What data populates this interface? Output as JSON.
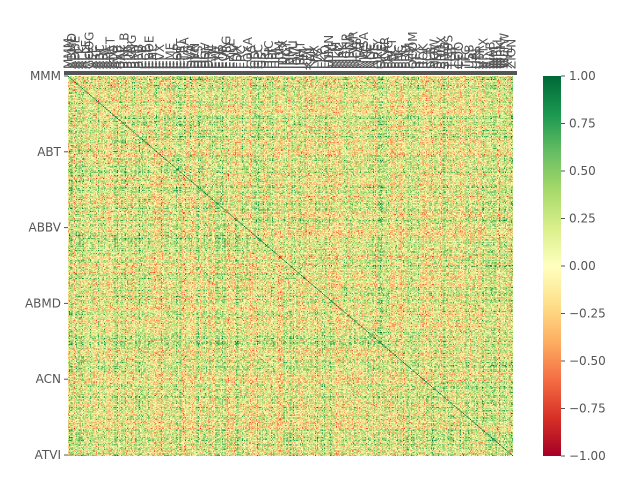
{
  "chart_data": {
    "type": "heatmap",
    "title": "",
    "xlabel": "",
    "ylabel": "",
    "colormap": "RdYlGn",
    "value_range": [
      -1.0,
      1.0
    ],
    "y_tick_labels": [
      "MMM",
      "ABT",
      "ABBV",
      "ABMD",
      "ACN",
      "ATVI"
    ],
    "x_tick_labels": [
      "MMM",
      "AOS",
      "ABT",
      "ABBV",
      "ABMD",
      "ACN",
      "ATVI",
      "ADM",
      "ADBE",
      "AAP",
      "AMD",
      "AES",
      "AFL",
      "A",
      "APD",
      "AKAM",
      "ALK",
      "ALB",
      "ARE",
      "ALGN",
      "ALLE",
      "LNT",
      "ALL",
      "GOOGL",
      "GOOG",
      "MO",
      "AMZN",
      "AMCR",
      "AEE",
      "AAL",
      "AEP",
      "AXP",
      "AIG",
      "AMT",
      "AWK",
      "AMP",
      "ABC",
      "AME",
      "AMGN",
      "APH",
      "ADI",
      "ANSS",
      "ANTM",
      "AON",
      "APA",
      "AAPL",
      "AMAT",
      "APTV",
      "ANET",
      "AJG",
      "AIZ",
      "T",
      "ATO",
      "ADSK",
      "ADP",
      "AZO",
      "AVB",
      "AVY",
      "BKR",
      "BLL",
      "BAC",
      "BBWI",
      "BAX",
      "BDX",
      "BRK.B",
      "BBY",
      "BIO",
      "TECH",
      "BIIB",
      "BLK",
      "BK",
      "BA",
      "BKNG",
      "BWA",
      "BXP",
      "BSX",
      "BMY",
      "AVGO",
      "BR",
      "BRO",
      "BF.B",
      "CHRW",
      "CDNS",
      "CZR",
      "CPB",
      "COF",
      "CAH",
      "KMX",
      "CCL",
      "CARR",
      "CTLT",
      "CAT",
      "CBOE",
      "CBRE",
      "CDW",
      "CE",
      "CNC",
      "CNP",
      "CDAY",
      "CERN",
      "CF",
      "CRL",
      "SCHW",
      "CHTR",
      "CVX",
      "CMG",
      "CB",
      "CHD",
      "CI",
      "CINF",
      "CTAS",
      "CSCO",
      "C",
      "CFG",
      "CTXS",
      "CLX",
      "CME",
      "CMS",
      "KO",
      "CTSH",
      "CL",
      "CMCSA",
      "CMA",
      "CAG",
      "COP",
      "ED",
      "STZ",
      "COO",
      "CPRT",
      "GLW",
      "CTVA",
      "COST",
      "CTRA",
      "CCI",
      "CSX",
      "CMI",
      "CVS",
      "DHI",
      "DHR",
      "DRI",
      "DVA",
      "DE",
      "DAL",
      "XRAY",
      "DVN",
      "DXCM",
      "FANG",
      "DLR",
      "DFS",
      "DISCA",
      "DISCK",
      "DISH",
      "DG",
      "DLTR",
      "D",
      "DPZ",
      "DOV",
      "DOW",
      "DTE",
      "DUK",
      "DRE",
      "DD",
      "DXC",
      "EMN",
      "ETN",
      "EBAY",
      "ECL",
      "EIX",
      "EW",
      "EA",
      "EMR",
      "ENPH",
      "ETR",
      "EOG",
      "EFX",
      "EQIX",
      "EQR",
      "ESS",
      "EL",
      "ETSY",
      "EVRG",
      "ES",
      "RE",
      "EXC",
      "EXPE",
      "EXPD",
      "EXR",
      "XOM",
      "FFIV",
      "FB",
      "FAST",
      "FRT",
      "FDX",
      "FIS",
      "FITB",
      "FE",
      "FRC",
      "FISV",
      "FLT",
      "FMC",
      "F",
      "FTNT",
      "FTV",
      "FBHS",
      "FOXA",
      "FOX",
      "BEN",
      "FCX",
      "GPS",
      "GRMN",
      "IT",
      "GNRC",
      "GD",
      "GE",
      "GIS",
      "GM",
      "GPC",
      "GILD",
      "GL",
      "GPN",
      "GS",
      "GWW",
      "HAL",
      "HBI",
      "HIG",
      "HAS",
      "HCA",
      "PEAK",
      "HSIC",
      "HSY",
      "HES",
      "HPE",
      "HLT",
      "HOLX",
      "HD",
      "HON",
      "HRL",
      "HST",
      "HWM",
      "HPQ",
      "HUM",
      "HBAN",
      "HII",
      "IEX",
      "IDXX",
      "INFO",
      "ITW",
      "ILMN",
      "INCY",
      "IR",
      "INTC",
      "ICE",
      "IBM",
      "IP",
      "IPG",
      "IFF",
      "INTU",
      "ISRG",
      "IVZ",
      "IPGP",
      "IQV",
      "IRM",
      "JKHY",
      "J",
      "JBHT",
      "SJM",
      "JNJ",
      "JCI",
      "JPM",
      "JNPR",
      "KSU",
      "K",
      "KEY",
      "KEYS",
      "KMB",
      "KIM",
      "KMI",
      "KLAC",
      "KHC",
      "KR",
      "LHX",
      "LH",
      "LRCX",
      "LW",
      "LVS",
      "LEG",
      "LDOS",
      "LEN",
      "LLY",
      "LNC",
      "LIN",
      "LYV",
      "LKQ",
      "LMT",
      "L",
      "LOW",
      "LUMN",
      "LYB",
      "MTB",
      "MRO",
      "MPC",
      "MKTX",
      "MAR",
      "MMC",
      "MLM",
      "MAS",
      "MA",
      "MTCH",
      "MKC",
      "MCD",
      "MCK",
      "MDT",
      "MRK",
      "MET",
      "MTD",
      "MGM",
      "MCHP",
      "MU",
      "MSFT",
      "MAA",
      "MRNA",
      "MHK",
      "TAP",
      "MDLZ",
      "MPWR",
      "MNST",
      "MCO",
      "MS",
      "MOS",
      "MSI",
      "MSCI",
      "NDAQ",
      "NTAP",
      "NFLX",
      "NWL",
      "NEM",
      "NWSA",
      "NWS",
      "NEE",
      "NLSN",
      "NKE",
      "NI",
      "NSC",
      "NTRS",
      "NOC",
      "NLOK",
      "NCLH",
      "NRG",
      "NUE",
      "NVDA",
      "NVR",
      "NXPI",
      "ORLY",
      "OXY",
      "ODFL",
      "OMC",
      "OKE",
      "ORCL",
      "OGN",
      "OTIS",
      "PCAR",
      "PKG",
      "PH",
      "PAYX",
      "PAYC",
      "PYPL",
      "PENN",
      "PNR",
      "PBCT",
      "PEP",
      "PKI",
      "PFE",
      "PM",
      "PSX",
      "PNW",
      "PXD",
      "PNC",
      "POOL",
      "PPG",
      "PPL",
      "PFG",
      "PG",
      "PGR",
      "PLD",
      "PRU",
      "PTC",
      "PEG",
      "PSA",
      "PHM",
      "PVH",
      "QRVO",
      "PWR",
      "QCOM",
      "DGX",
      "RL",
      "RJF",
      "RTX",
      "O",
      "REG",
      "REGN",
      "RF",
      "RSG",
      "RMD",
      "RHI",
      "ROK",
      "ROL",
      "ROP",
      "ROST",
      "RCL",
      "SPGI",
      "CRM",
      "SBAC",
      "SLB",
      "STX",
      "SEE",
      "SRE",
      "NOW",
      "SHW",
      "SPG",
      "SWKS",
      "SNA",
      "SO",
      "LUV",
      "SWK",
      "SBUX",
      "STT",
      "STE",
      "SYK",
      "SIVB",
      "SYF",
      "SNPS",
      "SYY",
      "TMUS",
      "TROW",
      "TTWO",
      "TPR",
      "TGT",
      "TEL",
      "TDY",
      "TFX",
      "TER",
      "TSLA",
      "TXN",
      "TXT",
      "COO",
      "TMO",
      "TJX",
      "TSCO",
      "TT",
      "TDG",
      "TRV",
      "TRMB",
      "TFC",
      "TWTR",
      "TYL",
      "TSN",
      "USB",
      "UDR",
      "ULTA",
      "UAA",
      "UA",
      "UNP",
      "UAL",
      "UPS",
      "URI",
      "UNH",
      "UHS",
      "VLO",
      "VTR",
      "VRSN",
      "VRSK",
      "VZ",
      "VRTX",
      "VFC",
      "VIAC",
      "VTRS",
      "V",
      "VNO",
      "VMC",
      "WRB",
      "WAB",
      "WBA",
      "WMT",
      "DIS",
      "WM",
      "WAT",
      "WEC",
      "WFC",
      "WELL",
      "WST",
      "WDC",
      "WU",
      "WRK",
      "WY",
      "WHR",
      "WMB",
      "WLTW",
      "WYNN",
      "XEL",
      "XLNX",
      "XYL",
      "YUM",
      "ZBRA",
      "ZBH",
      "ZION",
      "ZTS"
    ],
    "colorbar": {
      "ticks": [
        1.0,
        0.75,
        0.5,
        0.25,
        0.0,
        -0.25,
        -0.5,
        -0.75,
        -1.0
      ],
      "tick_labels": [
        "1.00",
        "0.75",
        "0.50",
        "0.25",
        "0.00",
        "−0.25",
        "−0.50",
        "−0.75",
        "−1.00"
      ]
    },
    "grid": false,
    "legend": "colorbar-right"
  }
}
